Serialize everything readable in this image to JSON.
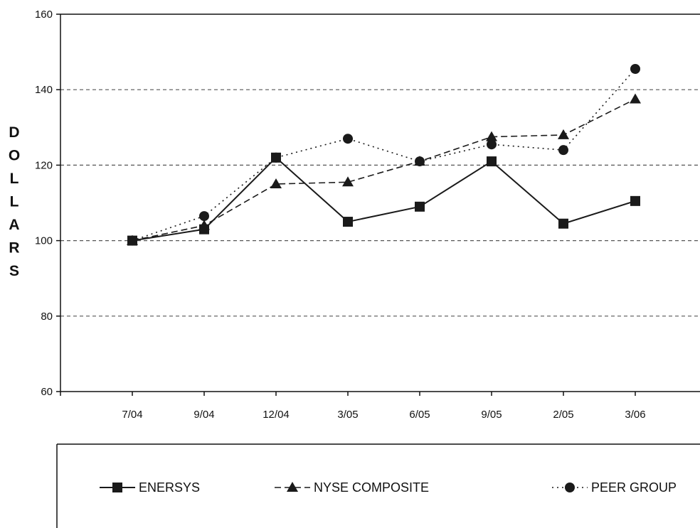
{
  "chart_data": {
    "type": "line",
    "title": "",
    "xlabel": "",
    "ylabel": "DOLLARS",
    "categories": [
      "7/04",
      "9/04",
      "12/04",
      "3/05",
      "6/05",
      "9/05",
      "2/05",
      "3/06"
    ],
    "ylim": [
      60,
      160
    ],
    "yticks": [
      60,
      80,
      100,
      120,
      140,
      160
    ],
    "grid": "horizontal dashed",
    "legend_position": "bottom",
    "series": [
      {
        "name": "ENERSYS",
        "marker": "square",
        "line_style": "solid",
        "values": [
          100,
          103,
          122,
          105,
          109,
          121,
          104.5,
          110.5
        ]
      },
      {
        "name": "NYSE COMPOSITE",
        "marker": "triangle",
        "line_style": "dashed",
        "values": [
          100,
          104,
          115,
          115.5,
          121,
          127.5,
          128,
          137.5
        ]
      },
      {
        "name": "PEER GROUP",
        "marker": "circle",
        "line_style": "dotted",
        "values": [
          100,
          106.5,
          122,
          127,
          121,
          125.5,
          124,
          145.5
        ]
      }
    ]
  }
}
